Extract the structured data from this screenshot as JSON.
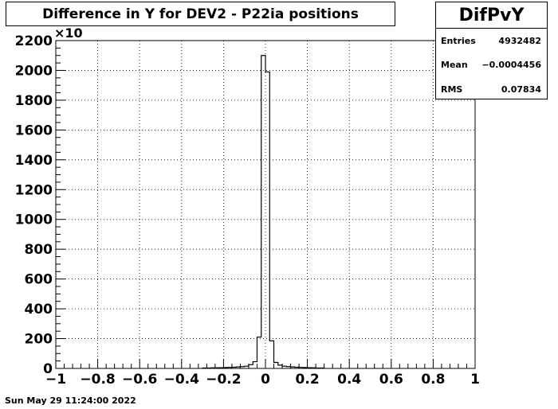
{
  "chart_data": {
    "type": "bar",
    "title": "Difference in Y for DEV2 - P22ia positions",
    "xlabel": "",
    "ylabel": "",
    "y_multiplier_label": "×10",
    "xlim": [
      -1,
      1
    ],
    "ylim": [
      0,
      2200
    ],
    "x_ticks": [
      "−1",
      "−0.8",
      "−0.6",
      "−0.4",
      "−0.2",
      "0",
      "0.2",
      "0.4",
      "0.6",
      "0.8",
      "1"
    ],
    "x_tick_values": [
      -1,
      -0.8,
      -0.6,
      -0.4,
      -0.2,
      0,
      0.2,
      0.4,
      0.6,
      0.8,
      1
    ],
    "y_ticks": [
      "0",
      "200",
      "400",
      "600",
      "800",
      "1000",
      "1200",
      "1400",
      "1600",
      "1800",
      "2000",
      "2200"
    ],
    "y_tick_values": [
      0,
      200,
      400,
      600,
      800,
      1000,
      1200,
      1400,
      1600,
      1800,
      2000,
      2200
    ],
    "grid": true,
    "bin_width": 0.02,
    "bins": [
      {
        "x0": -0.3,
        "x1": -0.28,
        "value": 3
      },
      {
        "x0": -0.28,
        "x1": -0.26,
        "value": 3
      },
      {
        "x0": -0.26,
        "x1": -0.24,
        "value": 4
      },
      {
        "x0": -0.24,
        "x1": -0.22,
        "value": 4
      },
      {
        "x0": -0.22,
        "x1": -0.2,
        "value": 5
      },
      {
        "x0": -0.2,
        "x1": -0.18,
        "value": 6
      },
      {
        "x0": -0.18,
        "x1": -0.16,
        "value": 7
      },
      {
        "x0": -0.16,
        "x1": -0.14,
        "value": 8
      },
      {
        "x0": -0.14,
        "x1": -0.12,
        "value": 10
      },
      {
        "x0": -0.12,
        "x1": -0.1,
        "value": 12
      },
      {
        "x0": -0.1,
        "x1": -0.08,
        "value": 15
      },
      {
        "x0": -0.08,
        "x1": -0.06,
        "value": 25
      },
      {
        "x0": -0.06,
        "x1": -0.04,
        "value": 45
      },
      {
        "x0": -0.04,
        "x1": -0.02,
        "value": 210
      },
      {
        "x0": -0.02,
        "x1": 0.0,
        "value": 2100
      },
      {
        "x0": 0.0,
        "x1": 0.02,
        "value": 1990
      },
      {
        "x0": 0.02,
        "x1": 0.04,
        "value": 185
      },
      {
        "x0": 0.04,
        "x1": 0.06,
        "value": 40
      },
      {
        "x0": 0.06,
        "x1": 0.08,
        "value": 22
      },
      {
        "x0": 0.08,
        "x1": 0.1,
        "value": 15
      },
      {
        "x0": 0.1,
        "x1": 0.12,
        "value": 12
      },
      {
        "x0": 0.12,
        "x1": 0.14,
        "value": 10
      },
      {
        "x0": 0.14,
        "x1": 0.16,
        "value": 8
      },
      {
        "x0": 0.16,
        "x1": 0.18,
        "value": 7
      },
      {
        "x0": 0.18,
        "x1": 0.2,
        "value": 6
      },
      {
        "x0": 0.2,
        "x1": 0.22,
        "value": 5
      },
      {
        "x0": 0.22,
        "x1": 0.24,
        "value": 4
      },
      {
        "x0": 0.24,
        "x1": 0.26,
        "value": 3
      },
      {
        "x0": 0.26,
        "x1": 0.28,
        "value": 3
      }
    ],
    "stats": {
      "name": "DifPvY",
      "entries_label": "Entries",
      "entries": "4932482",
      "mean_label": "Mean",
      "mean": "−0.0004456",
      "rms_label": "RMS",
      "rms": "0.07834"
    }
  },
  "footer": {
    "timestamp": "Sun May 29 11:24:00 2022"
  }
}
